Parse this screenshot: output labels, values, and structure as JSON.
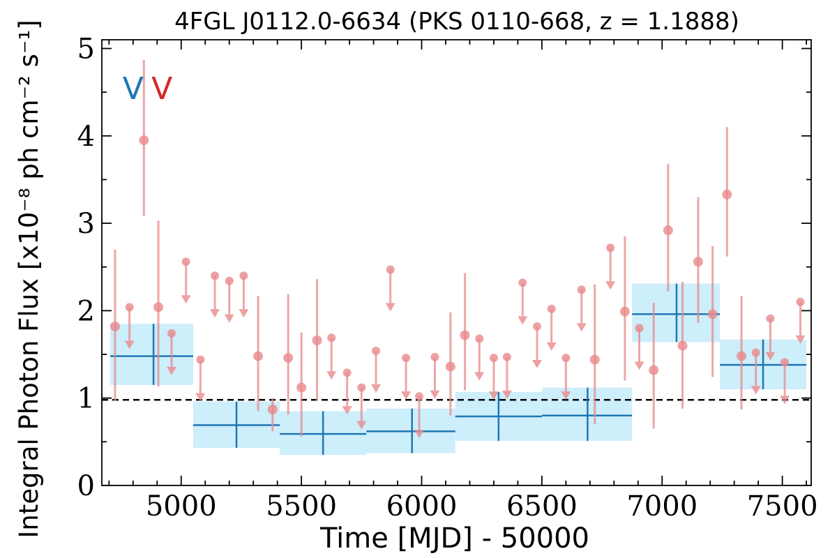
{
  "chart_data": {
    "type": "scatter",
    "title": "4FGL J0112.0-6634 (PKS 0110-668, z = 1.1888)",
    "xlabel": "Time [MJD] - 50000",
    "ylabel": "Integral Photon Flux [x10⁻⁸ ph cm⁻² s⁻¹]",
    "xlim": [
      4670,
      7620
    ],
    "ylim": [
      0,
      5.1
    ],
    "xticks": [
      5000,
      5500,
      6000,
      6500,
      7000,
      7500
    ],
    "xtick_labels": [
      "5000",
      "5500",
      "6000",
      "6500",
      "7000",
      "7500"
    ],
    "yticks": [
      0,
      1,
      2,
      3,
      4,
      5
    ],
    "ytick_labels": [
      "0",
      "1",
      "2",
      "3",
      "4",
      "5"
    ],
    "annotations": [
      {
        "text": "V",
        "color": "#1f77b4",
        "x": 4800,
        "y": 4.55
      },
      {
        "text": "V",
        "color": "#d62728",
        "x": 4920,
        "y": 4.55
      }
    ],
    "reference_line": {
      "y": 0.98,
      "style": "dashed",
      "color": "#000000"
    },
    "colors": {
      "binned": "#1f77b4",
      "band": "#cdeefb",
      "monthly": "#e8898c"
    },
    "series": [
      {
        "kind": "binned",
        "points": [
          {
            "x0": 4705,
            "x1": 5050,
            "x": 4885,
            "y": 1.48,
            "ylo": 1.15,
            "yhi": 1.85
          },
          {
            "x0": 5050,
            "x1": 5410,
            "x": 5230,
            "y": 0.69,
            "ylo": 0.43,
            "yhi": 0.96
          },
          {
            "x0": 5410,
            "x1": 5770,
            "x": 5590,
            "y": 0.59,
            "ylo": 0.35,
            "yhi": 0.85
          },
          {
            "x0": 5770,
            "x1": 6140,
            "x": 5960,
            "y": 0.62,
            "ylo": 0.37,
            "yhi": 0.88
          },
          {
            "x0": 6140,
            "x1": 6500,
            "x": 6320,
            "y": 0.79,
            "ylo": 0.51,
            "yhi": 1.07
          },
          {
            "x0": 6500,
            "x1": 6875,
            "x": 6690,
            "y": 0.8,
            "ylo": 0.51,
            "yhi": 1.12
          },
          {
            "x0": 6875,
            "x1": 7240,
            "x": 7060,
            "y": 1.96,
            "ylo": 1.64,
            "yhi": 2.31
          },
          {
            "x0": 7240,
            "x1": 7600,
            "x": 7420,
            "y": 1.38,
            "ylo": 1.1,
            "yhi": 1.67
          }
        ]
      },
      {
        "kind": "detection",
        "points": [
          {
            "x": 4725,
            "y": 1.82,
            "ylo": 0.97,
            "yhi": 2.7
          },
          {
            "x": 4845,
            "y": 3.95,
            "ylo": 3.08,
            "yhi": 4.87
          },
          {
            "x": 4905,
            "y": 2.04,
            "ylo": 1.13,
            "yhi": 3.03
          },
          {
            "x": 5320,
            "y": 1.48,
            "ylo": 0.85,
            "yhi": 2.17
          },
          {
            "x": 5380,
            "y": 0.87,
            "ylo": 0.62,
            "yhi": 1.0
          },
          {
            "x": 5445,
            "y": 1.46,
            "ylo": 0.81,
            "yhi": 2.19
          },
          {
            "x": 5500,
            "y": 1.12,
            "ylo": 0.56,
            "yhi": 1.75
          },
          {
            "x": 5565,
            "y": 1.66,
            "ylo": 0.97,
            "yhi": 2.36
          },
          {
            "x": 6120,
            "y": 1.36,
            "ylo": 0.8,
            "yhi": 1.98
          },
          {
            "x": 6180,
            "y": 1.72,
            "ylo": 1.09,
            "yhi": 2.43
          },
          {
            "x": 6720,
            "y": 1.44,
            "ylo": 0.7,
            "yhi": 2.3
          },
          {
            "x": 6845,
            "y": 1.99,
            "ylo": 1.2,
            "yhi": 2.85
          },
          {
            "x": 6965,
            "y": 1.32,
            "ylo": 0.65,
            "yhi": 2.09
          },
          {
            "x": 7025,
            "y": 2.92,
            "ylo": 2.22,
            "yhi": 3.68
          },
          {
            "x": 7085,
            "y": 1.6,
            "ylo": 0.88,
            "yhi": 2.33
          },
          {
            "x": 7150,
            "y": 2.56,
            "ylo": 1.86,
            "yhi": 3.3
          },
          {
            "x": 7210,
            "y": 1.96,
            "ylo": 1.24,
            "yhi": 2.74
          },
          {
            "x": 7270,
            "y": 3.33,
            "ylo": 2.62,
            "yhi": 4.1
          },
          {
            "x": 7330,
            "y": 1.48,
            "ylo": 0.87,
            "yhi": 2.17
          }
        ]
      },
      {
        "kind": "upper_limit",
        "points": [
          {
            "x": 4785,
            "y": 2.04
          },
          {
            "x": 4960,
            "y": 1.74
          },
          {
            "x": 5020,
            "y": 2.56
          },
          {
            "x": 5080,
            "y": 1.44
          },
          {
            "x": 5140,
            "y": 2.4
          },
          {
            "x": 5200,
            "y": 2.34
          },
          {
            "x": 5260,
            "y": 2.4
          },
          {
            "x": 5625,
            "y": 1.69
          },
          {
            "x": 5690,
            "y": 1.29
          },
          {
            "x": 5750,
            "y": 1.12
          },
          {
            "x": 5810,
            "y": 1.54
          },
          {
            "x": 5870,
            "y": 2.47
          },
          {
            "x": 5935,
            "y": 1.46
          },
          {
            "x": 5990,
            "y": 1.02
          },
          {
            "x": 6055,
            "y": 1.47
          },
          {
            "x": 6240,
            "y": 1.68
          },
          {
            "x": 6300,
            "y": 1.46
          },
          {
            "x": 6355,
            "y": 1.47
          },
          {
            "x": 6420,
            "y": 2.32
          },
          {
            "x": 6480,
            "y": 1.82
          },
          {
            "x": 6540,
            "y": 2.02
          },
          {
            "x": 6600,
            "y": 1.46
          },
          {
            "x": 6665,
            "y": 2.24
          },
          {
            "x": 6785,
            "y": 2.72
          },
          {
            "x": 6905,
            "y": 1.8
          },
          {
            "x": 7390,
            "y": 1.52
          },
          {
            "x": 7450,
            "y": 1.91
          },
          {
            "x": 7510,
            "y": 1.41
          },
          {
            "x": 7575,
            "y": 2.1
          }
        ]
      }
    ]
  }
}
